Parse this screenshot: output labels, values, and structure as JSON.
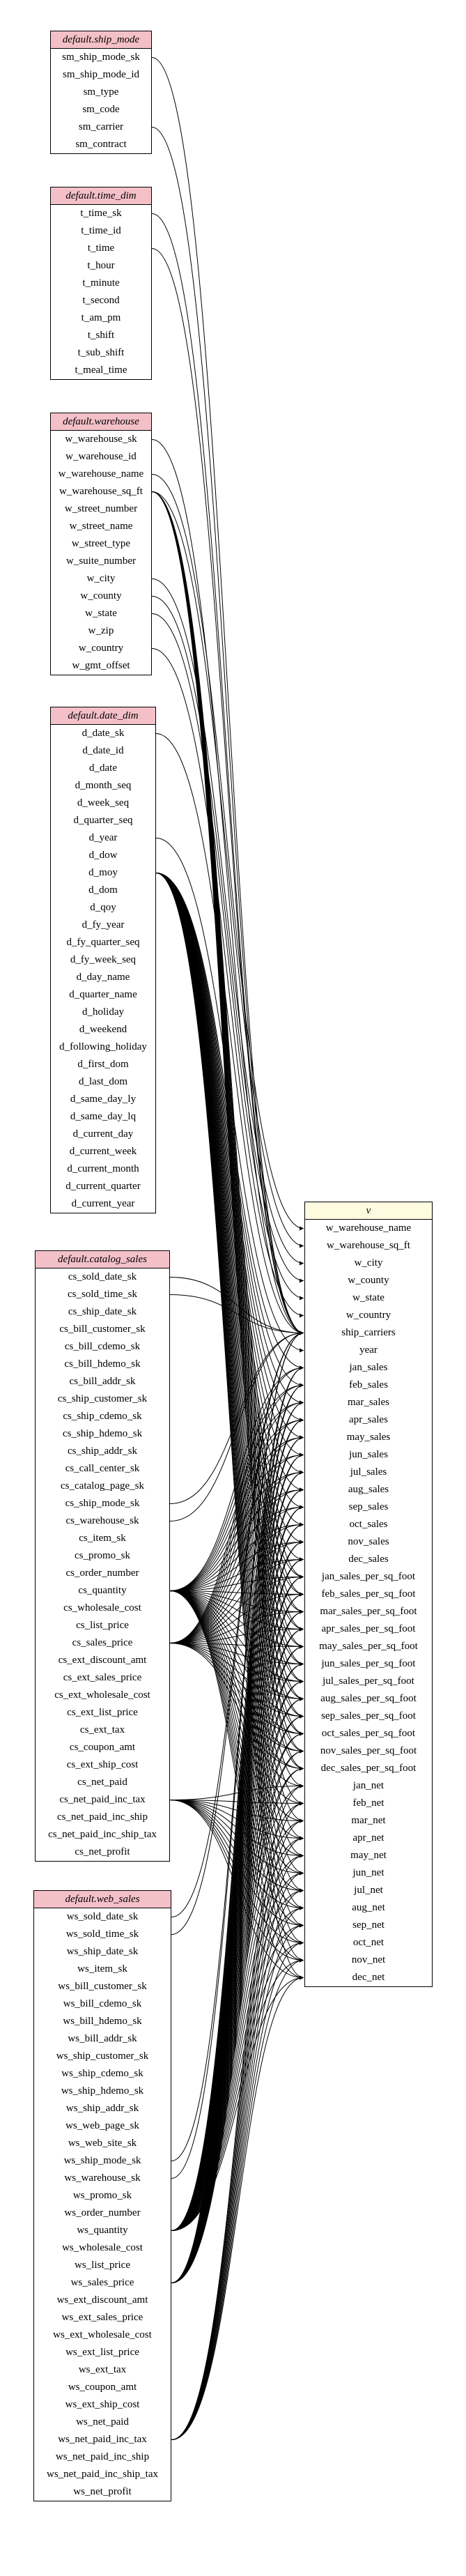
{
  "tables": [
    {
      "id": "ship_mode",
      "title": "default.ship_mode",
      "fields": [
        "sm_ship_mode_sk",
        "sm_ship_mode_id",
        "sm_type",
        "sm_code",
        "sm_carrier",
        "sm_contract"
      ]
    },
    {
      "id": "time_dim",
      "title": "default.time_dim",
      "fields": [
        "t_time_sk",
        "t_time_id",
        "t_time",
        "t_hour",
        "t_minute",
        "t_second",
        "t_am_pm",
        "t_shift",
        "t_sub_shift",
        "t_meal_time"
      ]
    },
    {
      "id": "warehouse",
      "title": "default.warehouse",
      "fields": [
        "w_warehouse_sk",
        "w_warehouse_id",
        "w_warehouse_name",
        "w_warehouse_sq_ft",
        "w_street_number",
        "w_street_name",
        "w_street_type",
        "w_suite_number",
        "w_city",
        "w_county",
        "w_state",
        "w_zip",
        "w_country",
        "w_gmt_offset"
      ]
    },
    {
      "id": "date_dim",
      "title": "default.date_dim",
      "fields": [
        "d_date_sk",
        "d_date_id",
        "d_date",
        "d_month_seq",
        "d_week_seq",
        "d_quarter_seq",
        "d_year",
        "d_dow",
        "d_moy",
        "d_dom",
        "d_qoy",
        "d_fy_year",
        "d_fy_quarter_seq",
        "d_fy_week_seq",
        "d_day_name",
        "d_quarter_name",
        "d_holiday",
        "d_weekend",
        "d_following_holiday",
        "d_first_dom",
        "d_last_dom",
        "d_same_day_ly",
        "d_same_day_lq",
        "d_current_day",
        "d_current_week",
        "d_current_month",
        "d_current_quarter",
        "d_current_year"
      ]
    },
    {
      "id": "catalog_sales",
      "title": "default.catalog_sales",
      "fields": [
        "cs_sold_date_sk",
        "cs_sold_time_sk",
        "cs_ship_date_sk",
        "cs_bill_customer_sk",
        "cs_bill_cdemo_sk",
        "cs_bill_hdemo_sk",
        "cs_bill_addr_sk",
        "cs_ship_customer_sk",
        "cs_ship_cdemo_sk",
        "cs_ship_hdemo_sk",
        "cs_ship_addr_sk",
        "cs_call_center_sk",
        "cs_catalog_page_sk",
        "cs_ship_mode_sk",
        "cs_warehouse_sk",
        "cs_item_sk",
        "cs_promo_sk",
        "cs_order_number",
        "cs_quantity",
        "cs_wholesale_cost",
        "cs_list_price",
        "cs_sales_price",
        "cs_ext_discount_amt",
        "cs_ext_sales_price",
        "cs_ext_wholesale_cost",
        "cs_ext_list_price",
        "cs_ext_tax",
        "cs_coupon_amt",
        "cs_ext_ship_cost",
        "cs_net_paid",
        "cs_net_paid_inc_tax",
        "cs_net_paid_inc_ship",
        "cs_net_paid_inc_ship_tax",
        "cs_net_profit"
      ]
    },
    {
      "id": "web_sales",
      "title": "default.web_sales",
      "fields": [
        "ws_sold_date_sk",
        "ws_sold_time_sk",
        "ws_ship_date_sk",
        "ws_item_sk",
        "ws_bill_customer_sk",
        "ws_bill_cdemo_sk",
        "ws_bill_hdemo_sk",
        "ws_bill_addr_sk",
        "ws_ship_customer_sk",
        "ws_ship_cdemo_sk",
        "ws_ship_hdemo_sk",
        "ws_ship_addr_sk",
        "ws_web_page_sk",
        "ws_web_site_sk",
        "ws_ship_mode_sk",
        "ws_warehouse_sk",
        "ws_promo_sk",
        "ws_order_number",
        "ws_quantity",
        "ws_wholesale_cost",
        "ws_list_price",
        "ws_sales_price",
        "ws_ext_discount_amt",
        "ws_ext_sales_price",
        "ws_ext_wholesale_cost",
        "ws_ext_list_price",
        "ws_ext_tax",
        "ws_coupon_amt",
        "ws_ext_ship_cost",
        "ws_net_paid",
        "ws_net_paid_inc_tax",
        "ws_net_paid_inc_ship",
        "ws_net_paid_inc_ship_tax",
        "ws_net_profit"
      ]
    }
  ],
  "target": {
    "id": "v",
    "title": "v",
    "fields": [
      "w_warehouse_name",
      "w_warehouse_sq_ft",
      "w_city",
      "w_county",
      "w_state",
      "w_country",
      "ship_carriers",
      "year",
      "jan_sales",
      "feb_sales",
      "mar_sales",
      "apr_sales",
      "may_sales",
      "jun_sales",
      "jul_sales",
      "aug_sales",
      "sep_sales",
      "oct_sales",
      "nov_sales",
      "dec_sales",
      "jan_sales_per_sq_foot",
      "feb_sales_per_sq_foot",
      "mar_sales_per_sq_foot",
      "apr_sales_per_sq_foot",
      "may_sales_per_sq_foot",
      "jun_sales_per_sq_foot",
      "jul_sales_per_sq_foot",
      "aug_sales_per_sq_foot",
      "sep_sales_per_sq_foot",
      "oct_sales_per_sq_foot",
      "nov_sales_per_sq_foot",
      "dec_sales_per_sq_foot",
      "jan_net",
      "feb_net",
      "mar_net",
      "apr_net",
      "may_net",
      "jun_net",
      "jul_net",
      "aug_net",
      "sep_net",
      "oct_net",
      "nov_net",
      "dec_net"
    ]
  },
  "edge_color": "#000000",
  "source_header_color": "#f4c0c8",
  "target_header_color": "#fffbe0"
}
